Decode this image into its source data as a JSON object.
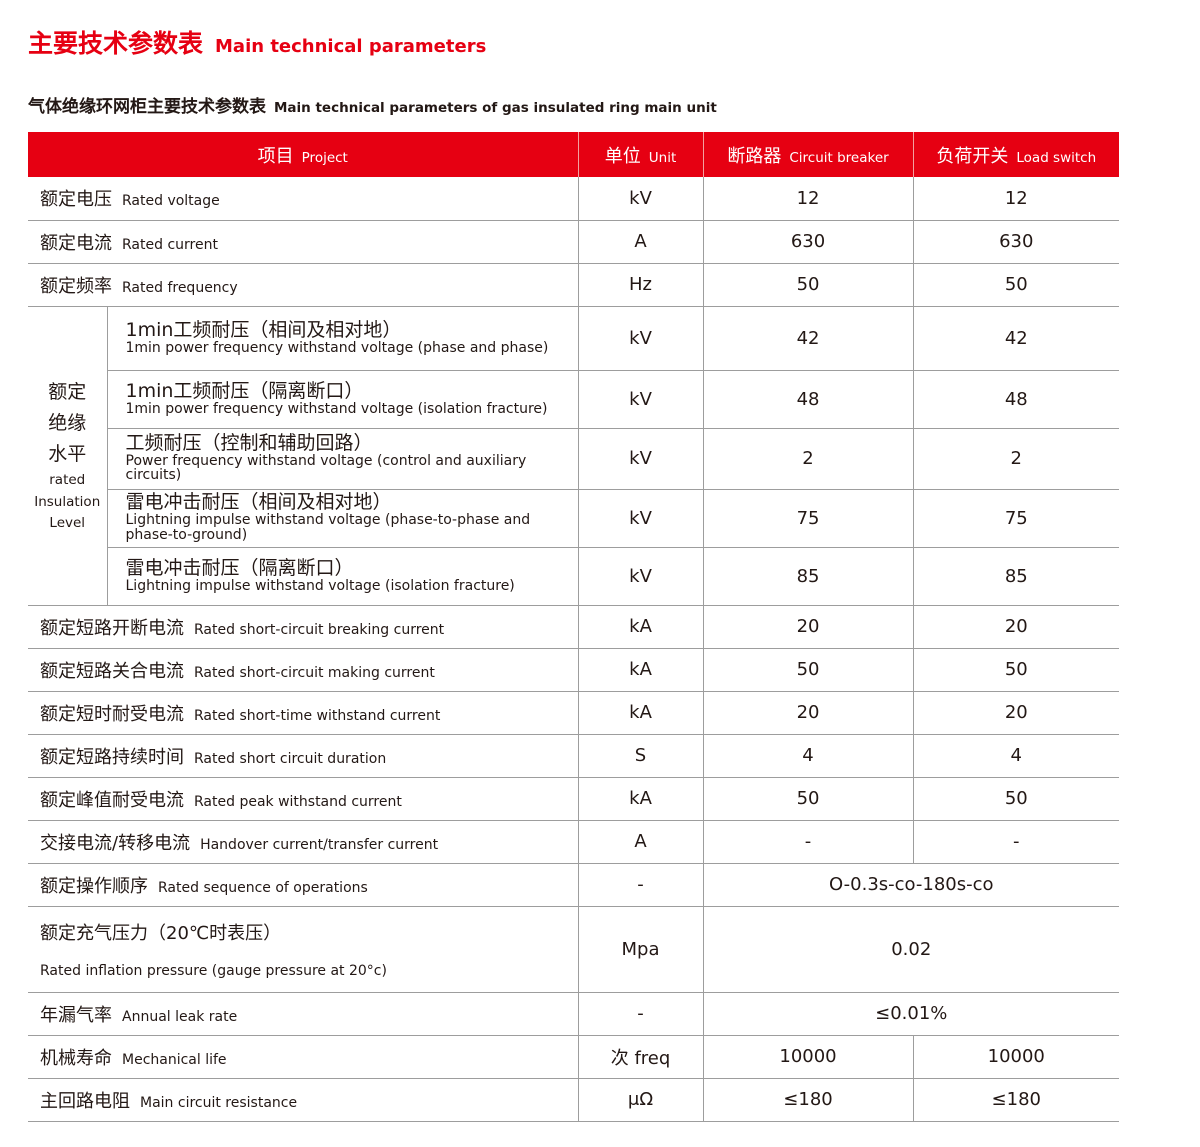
{
  "title": {
    "cn": "主要技术参数表",
    "en": "Main technical parameters"
  },
  "subtitle": {
    "cn": "气体绝缘环网柜主要技术参数表",
    "en": "Main technical parameters of gas insulated ring main unit"
  },
  "colors": {
    "accent": "#e60012",
    "grid": "#9d9d9d"
  },
  "headers": [
    {
      "cn": "项目",
      "en": "Project"
    },
    {
      "cn": "单位",
      "en": "Unit"
    },
    {
      "cn": "断路器",
      "en": "Circuit breaker"
    },
    {
      "cn": "负荷开关",
      "en": "Load switch"
    }
  ],
  "rows_top": [
    {
      "cn": "额定电压",
      "en": "Rated voltage",
      "unit": "kV",
      "cb": "12",
      "ls": "12"
    },
    {
      "cn": "额定电流",
      "en": "Rated current",
      "unit": "A",
      "cb": "630",
      "ls": "630"
    },
    {
      "cn": "额定频率",
      "en": "Rated frequency",
      "unit": "Hz",
      "cb": "50",
      "ls": "50"
    }
  ],
  "insulation": {
    "group_cn": [
      "额定",
      "绝缘",
      "水平"
    ],
    "group_en": [
      "rated",
      "Insulation",
      "Level"
    ],
    "items": [
      {
        "cn": "1min工频耐压（相间及相对地）",
        "en": "1min power frequency withstand voltage (phase and phase)",
        "unit": "kV",
        "cb": "42",
        "ls": "42"
      },
      {
        "cn": "1min工频耐压（隔离断口）",
        "en": "1min power frequency withstand voltage (isolation fracture)",
        "unit": "kV",
        "cb": "48",
        "ls": "48"
      },
      {
        "cn": "工频耐压（控制和辅助回路）",
        "en": "Power frequency withstand voltage (control and auxiliary circuits)",
        "unit": "kV",
        "cb": "2",
        "ls": "2"
      },
      {
        "cn": "雷电冲击耐压（相间及相对地）",
        "en": "Lightning impulse withstand voltage (phase-to-phase and phase-to-ground)",
        "unit": "kV",
        "cb": "75",
        "ls": "75"
      },
      {
        "cn": "雷电冲击耐压（隔离断口）",
        "en": "Lightning impulse withstand voltage (isolation fracture)",
        "unit": "kV",
        "cb": "85",
        "ls": "85"
      }
    ]
  },
  "rows_bottom": [
    {
      "cn": "额定短路开断电流",
      "en": "Rated short-circuit breaking current",
      "unit": "kA",
      "cb": "20",
      "ls": "20"
    },
    {
      "cn": "额定短路关合电流",
      "en": "Rated short-circuit making current",
      "unit": "kA",
      "cb": "50",
      "ls": "50"
    },
    {
      "cn": "额定短时耐受电流",
      "en": "Rated short-time withstand current",
      "unit": "kA",
      "cb": "20",
      "ls": "20"
    },
    {
      "cn": "额定短路持续时间",
      "en": "Rated short circuit duration",
      "unit": "S",
      "cb": "4",
      "ls": "4"
    },
    {
      "cn": "额定峰值耐受电流",
      "en": "Rated peak withstand current",
      "unit": "kA",
      "cb": "50",
      "ls": "50"
    },
    {
      "cn": "交接电流/转移电流",
      "en": "Handover current/transfer current",
      "unit": "A",
      "cb": "-",
      "ls": "-"
    },
    {
      "cn": "额定操作顺序",
      "en": "Rated sequence of operations",
      "unit": "-",
      "merged": "O-0.3s-co-180s-co"
    },
    {
      "cn": "额定充气压力（20℃时表压）",
      "en": "Rated inflation pressure (gauge pressure at 20°c)",
      "unit": "Mpa",
      "merged": "0.02",
      "tall": true
    },
    {
      "cn": "年漏气率",
      "en": "Annual leak rate",
      "unit": "-",
      "merged": "≤0.01%"
    },
    {
      "cn": "机械寿命",
      "en": "Mechanical life",
      "unit": "次  freq",
      "cb": "10000",
      "ls": "10000"
    },
    {
      "cn": "主回路电阻",
      "en": "Main circuit resistance",
      "unit": "μΩ",
      "cb": "≤180",
      "ls": "≤180"
    }
  ]
}
